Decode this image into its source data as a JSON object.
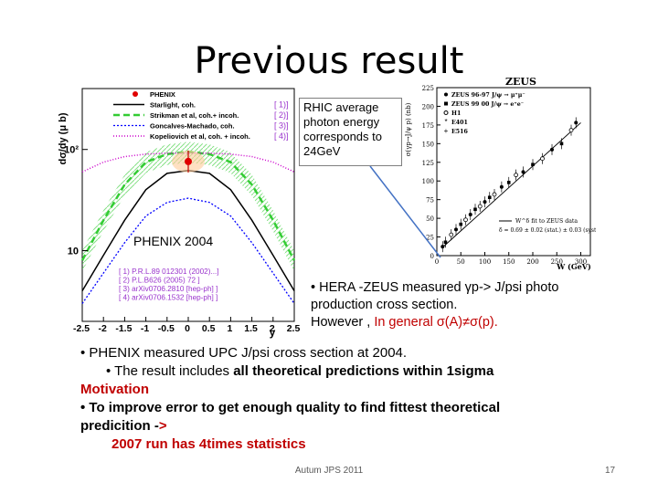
{
  "slide": {
    "title": "Previous result",
    "footer": "Autum JPS 2011",
    "page_number": "17"
  },
  "callout": {
    "line1": "RHIC average",
    "line2": "photon energy",
    "line3": "corresponds to",
    "line4": "24GeV"
  },
  "phenix_label": "PHENIX 2004",
  "hera": {
    "line1": "• HERA -ZEUS measured γp-> J/psi photo",
    "line2": "production cross section.",
    "line3_prefix": "However ,",
    "line3_red": "In general σ(A)≠σ(p)."
  },
  "body": {
    "line1": "• PHENIX measured UPC J/psi cross section at 2004.",
    "line2_prefix": "• The result includes ",
    "line2_bold": "all theoretical predictions within 1sigma",
    "line3": "Motivation",
    "line4": "• To improve error to get enough quality to find fittest theoretical",
    "line5_text": "predicition -",
    "line5_arrow": ">",
    "line6": "2007 run has 4times statistics"
  },
  "colors": {
    "accent_red": "#c00000",
    "band_green": "#33cc33",
    "starlight": "#000000",
    "goncalves": "#0000ff",
    "kopeliovich": "#cc00cc"
  },
  "chart_data": [
    {
      "type": "line",
      "ylabel": "dσ/dy (μ b)",
      "xlabel": "y",
      "xlim": [
        -2.5,
        2.5
      ],
      "y_scale": "log",
      "x_tick_labels": [
        "-2.5",
        "-2",
        "-1.5",
        "-1",
        "-0.5",
        "0",
        "0.5",
        "1",
        "1.5",
        "2",
        "2.5"
      ],
      "y_tick_labels": [
        "10²",
        "10"
      ],
      "legend": [
        {
          "name": "PHENIX",
          "marker": "red-dot"
        },
        {
          "name": "Starlight, coh.",
          "tag": "[ 1)]"
        },
        {
          "name": "Strikman et al, coh.+ incoh.",
          "tag": "[ 2)]"
        },
        {
          "name": "Goncalves-Machado, coh.",
          "tag": "[ 3)]"
        },
        {
          "name": "Kopeliovich et al, coh. + incoh.",
          "tag": "[ 4)]"
        }
      ],
      "references": [
        "[ 1) P.R.L.89 012301 (2002)...]",
        "[ 2) P.L.B626 (2005) 72 ]",
        "[ 3) arXiv0706.2810 [hep-ph] ]",
        "[ 4) arXiv0706.1532 [hep-ph] ]"
      ],
      "data_point": {
        "x": 0,
        "y": 76
      },
      "series": [
        {
          "name": "Starlight, coh.",
          "x": [
            -2.5,
            -2,
            -1.5,
            -1,
            -0.5,
            0,
            0.5,
            1,
            1.5,
            2,
            2.5
          ],
          "y": [
            4,
            9,
            20,
            40,
            58,
            62,
            58,
            40,
            20,
            9,
            4
          ]
        },
        {
          "name": "Strikman et al, coh.+ incoh.",
          "x": [
            -2.5,
            -2,
            -1.5,
            -1,
            -0.5,
            0,
            0.5,
            1,
            1.5,
            2,
            2.5
          ],
          "y": [
            8,
            20,
            45,
            75,
            90,
            95,
            90,
            75,
            45,
            20,
            8
          ]
        },
        {
          "name": "Goncalves-Machado, coh.",
          "x": [
            -2.5,
            -2,
            -1.5,
            -1,
            -0.5,
            0,
            0.5,
            1,
            1.5,
            2,
            2.5
          ],
          "y": [
            3,
            6,
            12,
            22,
            30,
            33,
            30,
            22,
            12,
            6,
            3
          ]
        },
        {
          "name": "Kopeliovich et al, coh. + incoh.",
          "x": [
            -2.5,
            -2,
            -1.5,
            -1,
            -0.5,
            0,
            0.5,
            1,
            1.5,
            2,
            2.5
          ],
          "y": [
            60,
            75,
            85,
            90,
            92,
            92,
            92,
            90,
            85,
            75,
            60
          ]
        }
      ]
    },
    {
      "type": "scatter",
      "title": "ZEUS",
      "xlabel": "W (GeV)",
      "ylabel": "σ(γp→J/ψ p) (nb)",
      "xlim": [
        0,
        320
      ],
      "ylim": [
        0,
        225
      ],
      "x_tick_labels": [
        "0",
        "50",
        "100",
        "150",
        "200",
        "250",
        "300"
      ],
      "y_tick_labels": [
        "0",
        "25",
        "50",
        "75",
        "100",
        "125",
        "150",
        "175",
        "200",
        "225"
      ],
      "legend": [
        {
          "name": "ZEUS 96-97 J/ψ → μ⁺μ⁻",
          "marker": "filled-circle"
        },
        {
          "name": "ZEUS 99 00 J/ψ → e⁺e⁻",
          "marker": "filled-square"
        },
        {
          "name": "H1",
          "marker": "open-circle"
        },
        {
          "name": "E401",
          "marker": "star"
        },
        {
          "name": "E516",
          "marker": "cross"
        }
      ],
      "fit_label": "W^δ fit to ZEUS data",
      "fit_params": "δ = 0.69 ± 0.02 (stat.) ± 0.03 (syst.)",
      "points": [
        {
          "x": 12,
          "y": 12
        },
        {
          "x": 18,
          "y": 18
        },
        {
          "x": 30,
          "y": 28
        },
        {
          "x": 40,
          "y": 35
        },
        {
          "x": 50,
          "y": 42
        },
        {
          "x": 60,
          "y": 48
        },
        {
          "x": 70,
          "y": 55
        },
        {
          "x": 80,
          "y": 62
        },
        {
          "x": 90,
          "y": 66
        },
        {
          "x": 100,
          "y": 72
        },
        {
          "x": 110,
          "y": 78
        },
        {
          "x": 120,
          "y": 82
        },
        {
          "x": 135,
          "y": 92
        },
        {
          "x": 150,
          "y": 98
        },
        {
          "x": 165,
          "y": 108
        },
        {
          "x": 180,
          "y": 112
        },
        {
          "x": 200,
          "y": 122
        },
        {
          "x": 220,
          "y": 130
        },
        {
          "x": 240,
          "y": 142
        },
        {
          "x": 260,
          "y": 150
        },
        {
          "x": 280,
          "y": 168
        },
        {
          "x": 290,
          "y": 178
        }
      ],
      "fit_line": {
        "x": [
          10,
          300
        ],
        "y": [
          10,
          178
        ]
      }
    }
  ]
}
